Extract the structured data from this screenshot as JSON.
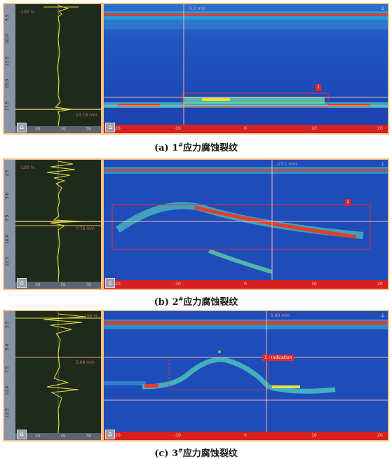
{
  "panels": [
    {
      "id": "a",
      "caption_prefix": "(a) 1",
      "caption_sup": "#",
      "caption_text": "应力腐蚀裂纹",
      "ascan_top_label": "-100 %",
      "ascan_mid_label": "13.18 mm",
      "ascan_axis_labels": [
        "39",
        "39",
        "78"
      ],
      "depth_scale": [
        "5.5",
        "10.0",
        "12.5",
        "15.0",
        "17.5"
      ],
      "bscan_top_label": "-5.2 mm",
      "bscan_axis_labels": [
        "-20",
        "-10",
        "0",
        "10",
        "20"
      ],
      "marker": "1"
    },
    {
      "id": "b",
      "caption_prefix": "(b) 2",
      "caption_sup": "#",
      "caption_text": "应力腐蚀裂纹",
      "ascan_top_label": "-100 %",
      "ascan_mid_label": "7.76 mm",
      "ascan_axis_labels": [
        "39",
        "39",
        "78"
      ],
      "depth_scale": [
        "2.5",
        "5.0",
        "7.5",
        "10.0",
        "12.5"
      ],
      "bscan_top_label": "-15.1 mm",
      "bscan_axis_labels": [
        "-20",
        "-10",
        "0",
        "10",
        "20"
      ],
      "marker": "1"
    },
    {
      "id": "c",
      "caption_prefix": "(c) 3",
      "caption_sup": "#",
      "caption_text": "应力腐蚀裂纹",
      "ascan_top_label": "-100 %",
      "ascan_mid_label": "5.68 mm",
      "ascan_axis_labels": [
        "39",
        "39",
        "78"
      ],
      "depth_scale": [
        "2.5",
        "5.0",
        "7.5",
        "10.0",
        "12.5"
      ],
      "bscan_top_label": "5.80 mm",
      "bscan_axis_labels": [
        "-20",
        "-10",
        "0",
        "10",
        "20"
      ],
      "indication_label": "1 - Indication"
    }
  ],
  "colors": {
    "frame": "#f2c283",
    "bscan_bg": "#1f47b4",
    "axis_red": "#d82020",
    "cursor": "#f0b8a8"
  }
}
